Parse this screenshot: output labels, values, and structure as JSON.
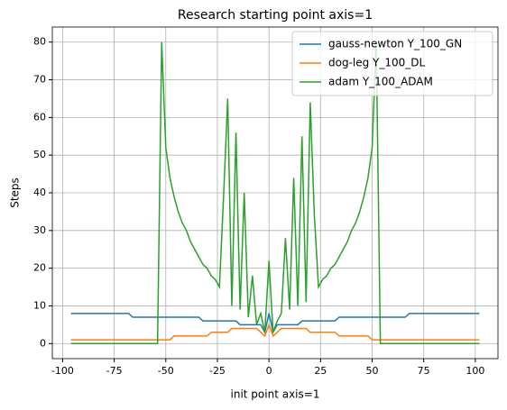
{
  "chart_data": {
    "type": "line",
    "title": "Research starting point axis=1",
    "xlabel": "init point axis=1",
    "ylabel": "Steps",
    "x": [
      -96,
      -94,
      -92,
      -90,
      -88,
      -86,
      -84,
      -82,
      -80,
      -78,
      -76,
      -74,
      -72,
      -70,
      -68,
      -66,
      -64,
      -62,
      -60,
      -58,
      -56,
      -54,
      -52,
      -50,
      -48,
      -46,
      -44,
      -42,
      -40,
      -38,
      -36,
      -34,
      -32,
      -30,
      -28,
      -26,
      -24,
      -22,
      -20,
      -18,
      -16,
      -14,
      -12,
      -10,
      -8,
      -6,
      -4,
      -2,
      0,
      2,
      4,
      6,
      8,
      10,
      12,
      14,
      16,
      18,
      20,
      22,
      24,
      26,
      28,
      30,
      32,
      34,
      36,
      38,
      40,
      42,
      44,
      46,
      48,
      50,
      52,
      54,
      56,
      58,
      60,
      62,
      64,
      66,
      68,
      70,
      72,
      74,
      76,
      78,
      80,
      82,
      84,
      86,
      88,
      90,
      92,
      94,
      96,
      98,
      100,
      102
    ],
    "series": [
      {
        "name": "gauss-newton Y_100_GN",
        "color": "#1f77b4",
        "values": [
          8,
          8,
          8,
          8,
          8,
          8,
          8,
          8,
          8,
          8,
          8,
          8,
          8,
          8,
          8,
          7,
          7,
          7,
          7,
          7,
          7,
          7,
          7,
          7,
          7,
          7,
          7,
          7,
          7,
          7,
          7,
          7,
          6,
          6,
          6,
          6,
          6,
          6,
          6,
          6,
          6,
          5,
          5,
          5,
          5,
          5,
          5,
          3,
          8,
          3,
          5,
          5,
          5,
          5,
          5,
          5,
          6,
          6,
          6,
          6,
          6,
          6,
          6,
          6,
          6,
          7,
          7,
          7,
          7,
          7,
          7,
          7,
          7,
          7,
          7,
          7,
          7,
          7,
          7,
          7,
          7,
          7,
          8,
          8,
          8,
          8,
          8,
          8,
          8,
          8,
          8,
          8,
          8,
          8,
          8,
          8,
          8,
          8,
          8,
          8
        ]
      },
      {
        "name": "dog-leg Y_100_DL",
        "color": "#ff7f0e",
        "values": [
          1,
          1,
          1,
          1,
          1,
          1,
          1,
          1,
          1,
          1,
          1,
          1,
          1,
          1,
          1,
          1,
          1,
          1,
          1,
          1,
          1,
          1,
          1,
          1,
          1,
          2,
          2,
          2,
          2,
          2,
          2,
          2,
          2,
          2,
          3,
          3,
          3,
          3,
          3,
          4,
          4,
          4,
          4,
          4,
          4,
          4,
          3,
          2,
          5,
          2,
          3,
          4,
          4,
          4,
          4,
          4,
          4,
          4,
          3,
          3,
          3,
          3,
          3,
          3,
          3,
          2,
          2,
          2,
          2,
          2,
          2,
          2,
          2,
          1,
          1,
          1,
          1,
          1,
          1,
          1,
          1,
          1,
          1,
          1,
          1,
          1,
          1,
          1,
          1,
          1,
          1,
          1,
          1,
          1,
          1,
          1,
          1,
          1,
          1,
          1
        ]
      },
      {
        "name": "adam Y_100_ADAM",
        "color": "#2ca02c",
        "values": [
          0,
          0,
          0,
          0,
          0,
          0,
          0,
          0,
          0,
          0,
          0,
          0,
          0,
          0,
          0,
          0,
          0,
          0,
          0,
          0,
          0,
          0,
          80,
          52,
          44,
          39,
          35,
          32,
          30,
          27,
          25,
          23,
          21,
          20,
          18,
          17,
          15,
          39,
          65,
          10,
          56,
          9,
          40,
          7,
          18,
          5,
          8,
          3,
          22,
          3,
          6,
          8,
          28,
          9,
          44,
          10,
          55,
          11,
          64,
          34,
          15,
          17,
          18,
          20,
          21,
          23,
          25,
          27,
          30,
          32,
          35,
          39,
          44,
          52,
          80,
          0,
          0,
          0,
          0,
          0,
          0,
          0,
          0,
          0,
          0,
          0,
          0,
          0,
          0,
          0,
          0,
          0,
          0,
          0,
          0,
          0,
          0,
          0,
          0,
          0
        ]
      }
    ],
    "xlim": [
      -105,
      111
    ],
    "ylim": [
      -4,
      84
    ],
    "xticks": [
      -100,
      -75,
      -50,
      -25,
      0,
      25,
      50,
      75,
      100
    ],
    "yticks": [
      0,
      10,
      20,
      30,
      40,
      50,
      60,
      70,
      80
    ],
    "grid": true,
    "legend": "upper right"
  }
}
